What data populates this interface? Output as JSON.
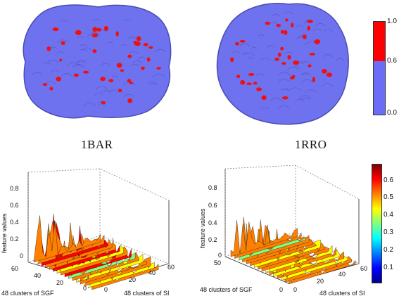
{
  "top_panel": {
    "proteins": [
      {
        "label": "1BAR",
        "surface_color": "#6b6ef0",
        "spot_color": "#ee1111"
      },
      {
        "label": "1RRO",
        "surface_color": "#6b6ef0",
        "spot_color": "#ee1111"
      }
    ],
    "colorbar": {
      "ticks": [
        "1.0",
        "0.6",
        "0.0"
      ],
      "segments": [
        {
          "from": 0.6,
          "to": 1.0,
          "color": "#ff0000"
        },
        {
          "from": 0.0,
          "to": 0.6,
          "color": "#6b6ef5"
        }
      ]
    }
  },
  "bottom_panel": {
    "plots": [
      {
        "name": "1BAR",
        "zlabel": "feature values",
        "xlabel": "48 clusters of SGF",
        "ylabel": "48 clusters of SI",
        "z_ticks": [
          "0",
          "0.2",
          "0.4",
          "0.6",
          "0.8"
        ],
        "sgf_ticks": [
          "0",
          "20",
          "40",
          "60"
        ],
        "si_ticks": [
          "0",
          "20",
          "40",
          "60"
        ]
      },
      {
        "name": "1RRO",
        "zlabel": "feature values",
        "xlabel": "48 clusters of SGF",
        "ylabel": "48 clusters of SI",
        "z_ticks": [
          "0",
          "0.2",
          "0.4",
          "0.6",
          "0.8"
        ],
        "sgf_ticks": [
          "0",
          "50"
        ],
        "si_ticks": [
          "0",
          "20",
          "40",
          "60"
        ]
      }
    ],
    "colorbar": {
      "ticks": [
        "0.6",
        "0.5",
        "0.4",
        "0.3",
        "0.2",
        "0.1"
      ],
      "colormap": [
        "#00008f",
        "#0000ff",
        "#0080ff",
        "#00ffff",
        "#80ff80",
        "#ffff00",
        "#ff8000",
        "#ff0000",
        "#800000"
      ]
    }
  }
}
